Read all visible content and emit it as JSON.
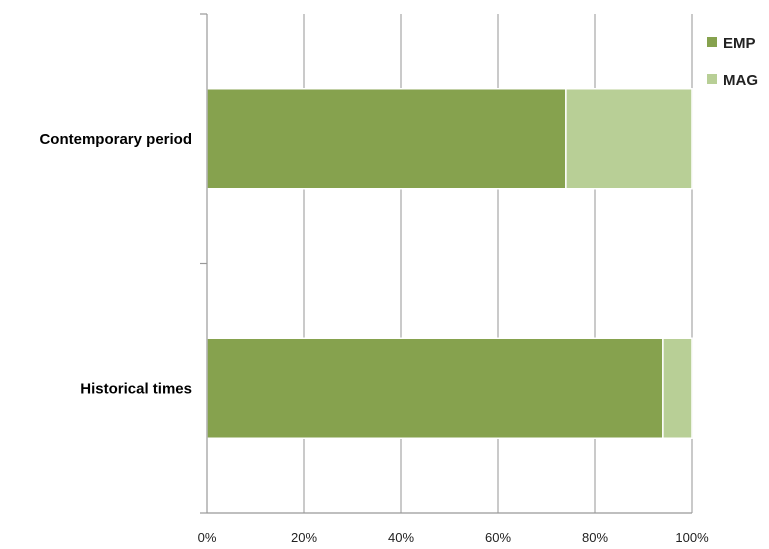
{
  "chart_data": {
    "type": "bar",
    "orientation": "horizontal",
    "stacked": "percent",
    "categories": [
      "Contemporary period",
      "Historical times"
    ],
    "series": [
      {
        "name": "EMP",
        "values": [
          74,
          94
        ],
        "color": "#86a24e"
      },
      {
        "name": "MAG",
        "values": [
          26,
          6
        ],
        "color": "#b8cf96"
      }
    ],
    "xlim": [
      0,
      100
    ],
    "x_ticks": [
      "0%",
      "20%",
      "40%",
      "60%",
      "80%",
      "100%"
    ],
    "title": "",
    "xlabel": "",
    "ylabel": "",
    "grid": "vertical",
    "legend_position": "top-right"
  }
}
